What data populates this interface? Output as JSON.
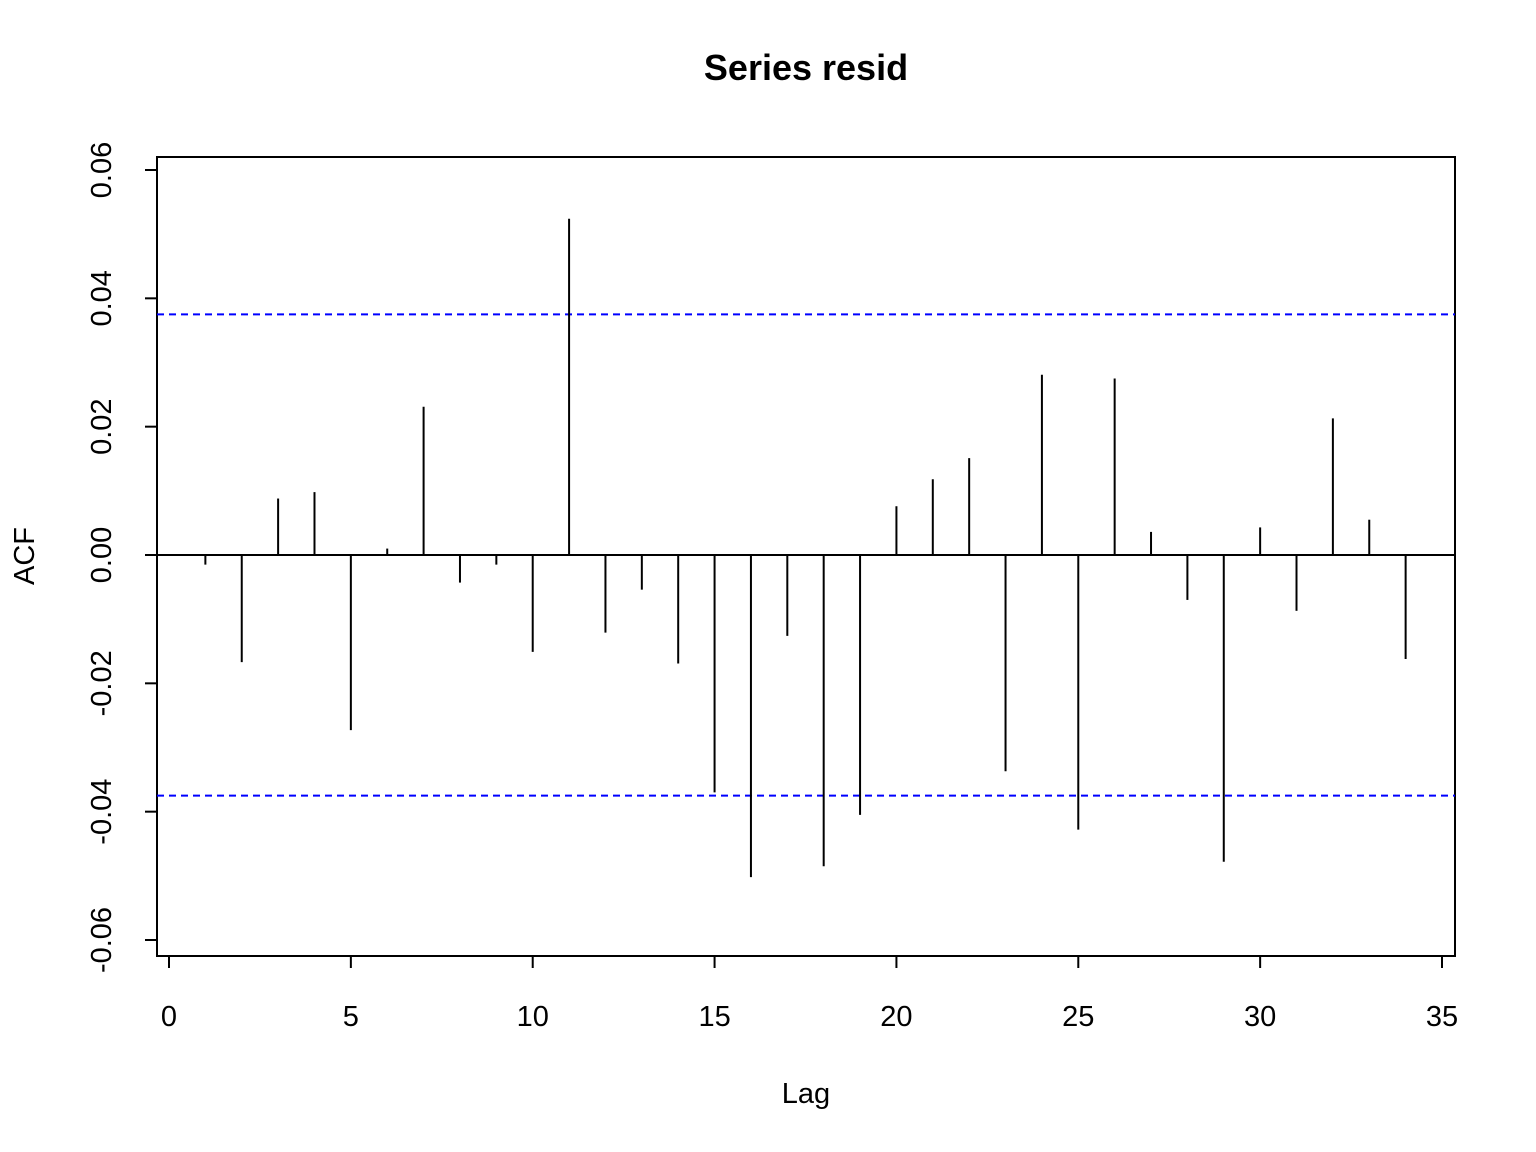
{
  "chart_data": {
    "type": "bar",
    "title": "Series  resid",
    "xlabel": "Lag",
    "ylabel": "ACF",
    "xlim": [
      0,
      35
    ],
    "ylim": [
      -0.06,
      0.06
    ],
    "x_ticks": [
      "0",
      "5",
      "10",
      "15",
      "20",
      "25",
      "30",
      "35"
    ],
    "y_ticks": [
      "-0.06",
      "-0.04",
      "-0.02",
      "0.00",
      "0.02",
      "0.04",
      "0.06"
    ],
    "x": [
      1,
      2,
      3,
      4,
      5,
      6,
      7,
      8,
      9,
      10,
      11,
      12,
      13,
      14,
      15,
      16,
      17,
      18,
      19,
      20,
      21,
      22,
      23,
      24,
      25,
      26,
      27,
      28,
      29,
      30,
      31,
      32,
      33,
      34
    ],
    "values": [
      -0.0015,
      -0.0167,
      0.0088,
      0.0098,
      -0.0273,
      0.001,
      0.0231,
      -0.0043,
      -0.0015,
      -0.0151,
      0.0524,
      -0.0121,
      -0.0054,
      -0.0169,
      -0.037,
      -0.0502,
      -0.0126,
      -0.0485,
      -0.0405,
      0.0076,
      0.0118,
      0.0151,
      -0.0337,
      0.0281,
      -0.0428,
      0.0275,
      0.0036,
      -0.007,
      -0.0478,
      0.0043,
      -0.0087,
      0.0213,
      0.0055,
      -0.0162
    ],
    "ci": 0.0375,
    "ci_color": "#0000ff",
    "bar_color": "#000000",
    "grid": false,
    "legend": "none"
  }
}
